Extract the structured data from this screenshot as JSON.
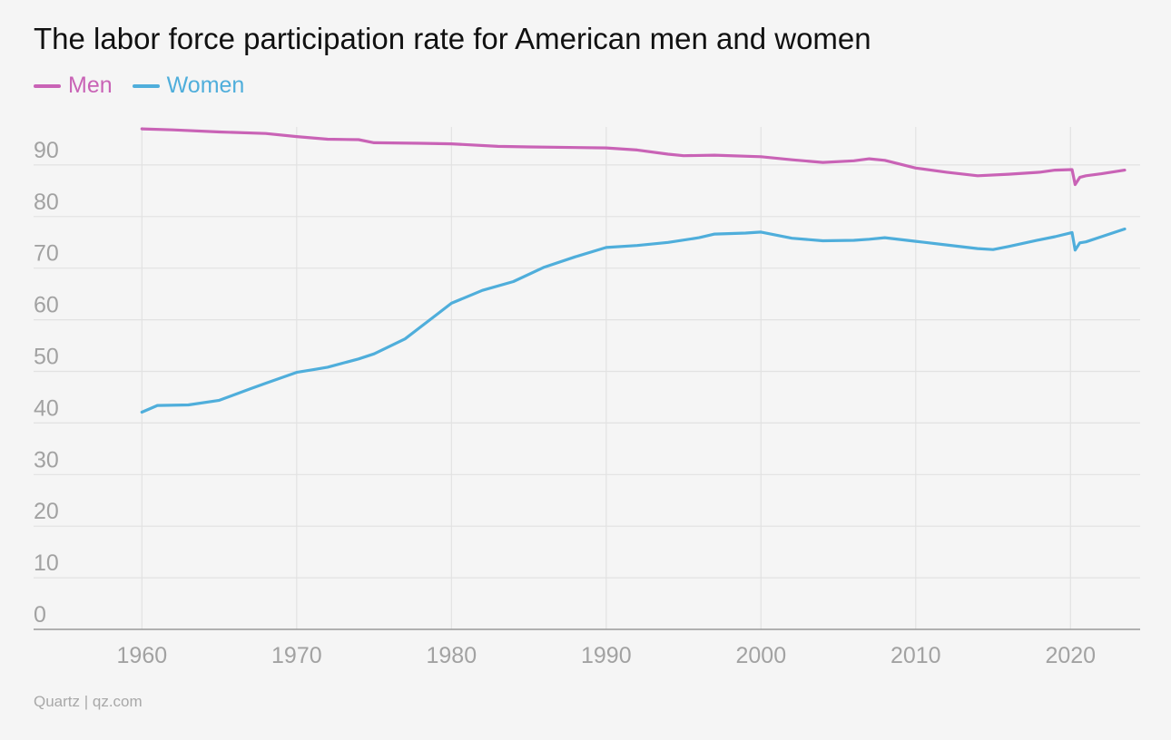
{
  "chart_data": {
    "type": "line",
    "title": "The labor force participation rate for American men and women",
    "xlabel": "",
    "ylabel": "",
    "xlim": [
      1953,
      2024.5
    ],
    "ylim": [
      0,
      100
    ],
    "x_ticks": [
      1960,
      1970,
      1980,
      1990,
      2000,
      2010,
      2020
    ],
    "y_ticks": [
      0,
      10,
      20,
      30,
      40,
      50,
      60,
      70,
      80,
      90
    ],
    "grid": true,
    "legend_position": "top-left",
    "series": [
      {
        "name": "Men",
        "color": "#c963b6",
        "points": [
          [
            1960,
            97.0
          ],
          [
            1962,
            96.8
          ],
          [
            1965,
            96.4
          ],
          [
            1968,
            96.1
          ],
          [
            1970,
            95.5
          ],
          [
            1972,
            95.0
          ],
          [
            1974,
            94.9
          ],
          [
            1975,
            94.3
          ],
          [
            1978,
            94.2
          ],
          [
            1980,
            94.1
          ],
          [
            1983,
            93.6
          ],
          [
            1985,
            93.5
          ],
          [
            1990,
            93.3
          ],
          [
            1992,
            92.9
          ],
          [
            1994,
            92.1
          ],
          [
            1995,
            91.8
          ],
          [
            1997,
            91.9
          ],
          [
            2000,
            91.6
          ],
          [
            2002,
            91.0
          ],
          [
            2004,
            90.5
          ],
          [
            2006,
            90.8
          ],
          [
            2007,
            91.2
          ],
          [
            2008,
            90.9
          ],
          [
            2010,
            89.4
          ],
          [
            2012,
            88.6
          ],
          [
            2014,
            87.9
          ],
          [
            2016,
            88.2
          ],
          [
            2018,
            88.6
          ],
          [
            2019,
            89.0
          ],
          [
            2020.1,
            89.1
          ],
          [
            2020.3,
            86.2
          ],
          [
            2020.6,
            87.6
          ],
          [
            2021,
            87.9
          ],
          [
            2022,
            88.3
          ],
          [
            2023.5,
            89.0
          ]
        ]
      },
      {
        "name": "Women",
        "color": "#4faedb",
        "points": [
          [
            1960,
            42.1
          ],
          [
            1961,
            43.4
          ],
          [
            1963,
            43.5
          ],
          [
            1965,
            44.4
          ],
          [
            1967,
            46.6
          ],
          [
            1968,
            47.7
          ],
          [
            1970,
            49.8
          ],
          [
            1971,
            50.3
          ],
          [
            1972,
            50.8
          ],
          [
            1974,
            52.4
          ],
          [
            1975,
            53.4
          ],
          [
            1977,
            56.3
          ],
          [
            1978,
            58.6
          ],
          [
            1979,
            60.9
          ],
          [
            1980,
            63.2
          ],
          [
            1982,
            65.7
          ],
          [
            1984,
            67.4
          ],
          [
            1986,
            70.2
          ],
          [
            1988,
            72.2
          ],
          [
            1990,
            74.0
          ],
          [
            1992,
            74.4
          ],
          [
            1994,
            75.0
          ],
          [
            1996,
            75.9
          ],
          [
            1997,
            76.6
          ],
          [
            1999,
            76.8
          ],
          [
            2000,
            77.0
          ],
          [
            2002,
            75.8
          ],
          [
            2004,
            75.3
          ],
          [
            2006,
            75.4
          ],
          [
            2007,
            75.6
          ],
          [
            2008,
            75.9
          ],
          [
            2010,
            75.2
          ],
          [
            2012,
            74.5
          ],
          [
            2014,
            73.8
          ],
          [
            2015,
            73.6
          ],
          [
            2016,
            74.2
          ],
          [
            2018,
            75.5
          ],
          [
            2019,
            76.1
          ],
          [
            2020.1,
            76.9
          ],
          [
            2020.3,
            73.5
          ],
          [
            2020.6,
            74.9
          ],
          [
            2021,
            75.1
          ],
          [
            2022,
            76.1
          ],
          [
            2023.5,
            77.6
          ]
        ]
      }
    ]
  },
  "header": {
    "title": "The labor force participation rate for American men and women"
  },
  "legend": [
    {
      "label": "Men",
      "color": "#c963b6"
    },
    {
      "label": "Women",
      "color": "#4faedb"
    }
  ],
  "footer": {
    "source": "Quartz | qz.com"
  }
}
